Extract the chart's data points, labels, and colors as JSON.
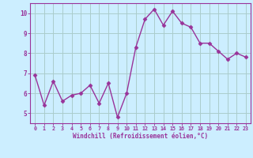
{
  "x": [
    0,
    1,
    2,
    3,
    4,
    5,
    6,
    7,
    8,
    9,
    10,
    11,
    12,
    13,
    14,
    15,
    16,
    17,
    18,
    19,
    20,
    21,
    22,
    23
  ],
  "y": [
    6.9,
    5.4,
    6.6,
    5.6,
    5.9,
    6.0,
    6.4,
    5.5,
    6.5,
    4.8,
    6.0,
    8.3,
    9.7,
    10.2,
    9.4,
    10.1,
    9.5,
    9.3,
    8.5,
    8.5,
    8.1,
    7.7,
    8.0,
    7.8
  ],
  "line_color": "#993399",
  "marker": "D",
  "marker_size": 2.5,
  "line_width": 1.0,
  "bg_color": "#cceeff",
  "grid_color": "#aacccc",
  "xlabel": "Windchill (Refroidissement éolien,°C)",
  "xlabel_color": "#993399",
  "tick_color": "#993399",
  "xlim": [
    -0.5,
    23.5
  ],
  "ylim": [
    4.5,
    10.5
  ],
  "yticks": [
    5,
    6,
    7,
    8,
    9,
    10
  ],
  "xticks": [
    0,
    1,
    2,
    3,
    4,
    5,
    6,
    7,
    8,
    9,
    10,
    11,
    12,
    13,
    14,
    15,
    16,
    17,
    18,
    19,
    20,
    21,
    22,
    23
  ]
}
